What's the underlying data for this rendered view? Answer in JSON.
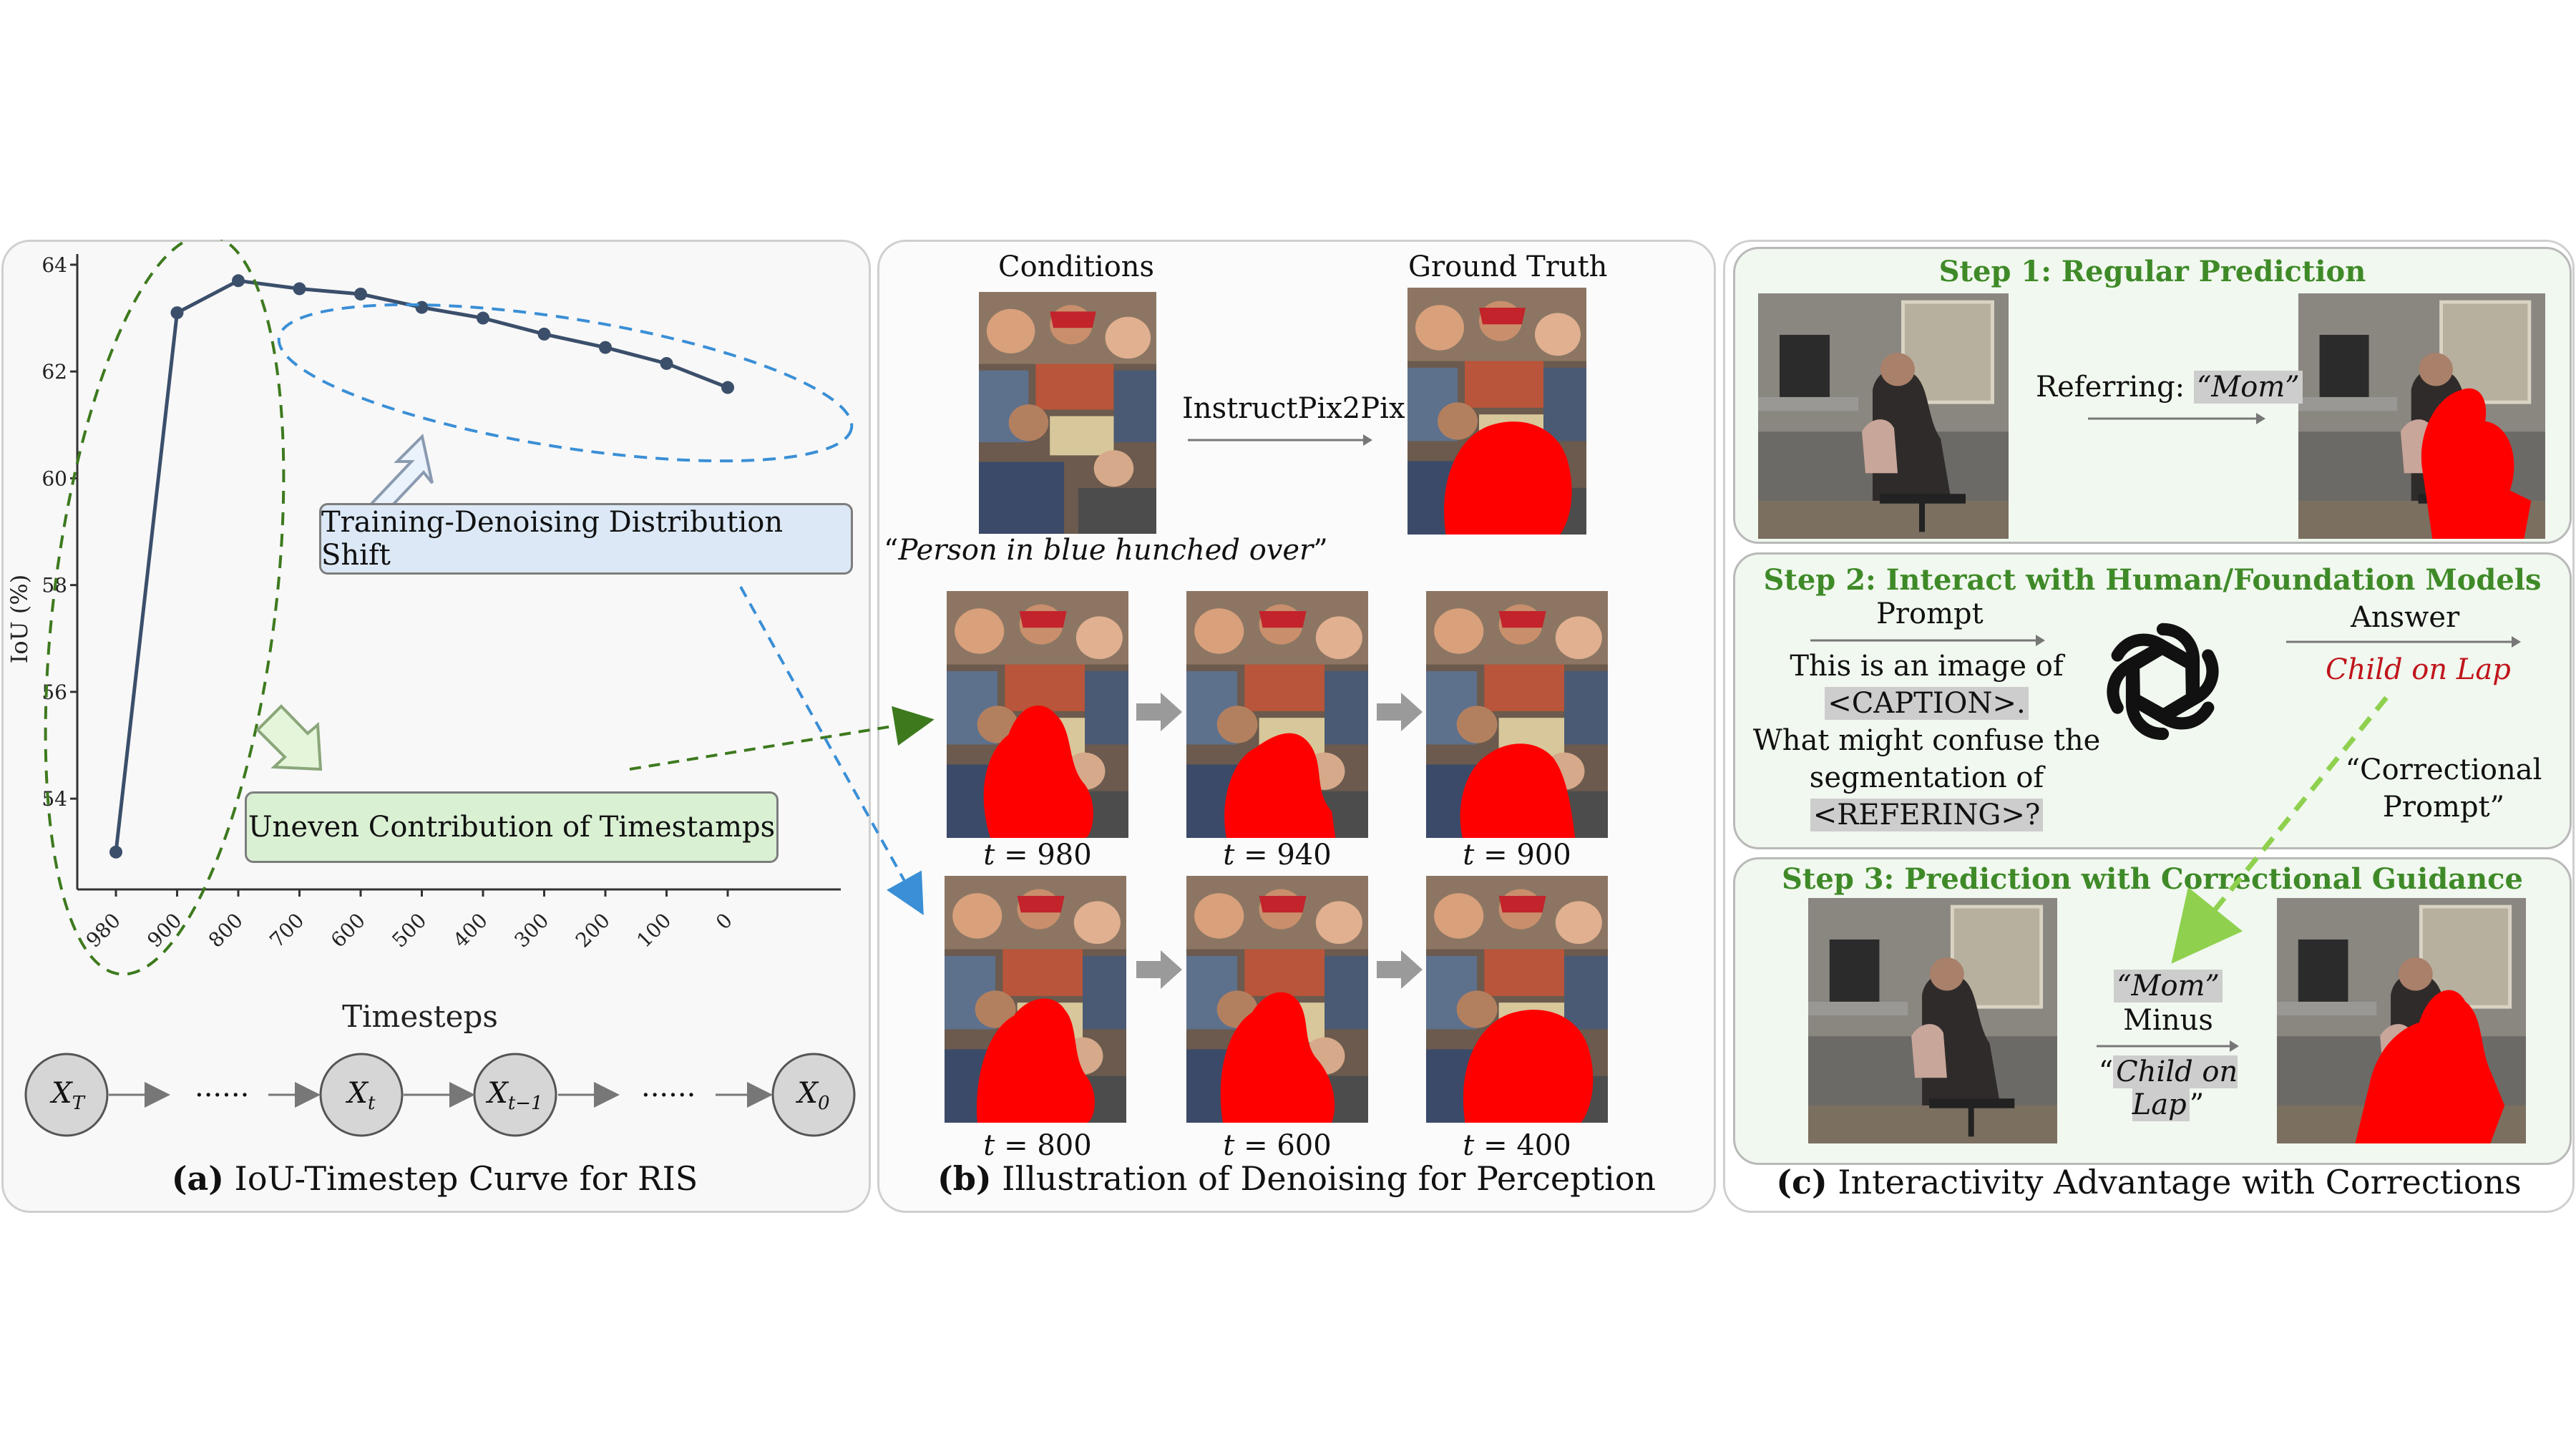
{
  "panel_a": {
    "caption_label": "(a)",
    "caption_text": " IoU-Timestep Curve for RIS",
    "callout_shift": "Training-Denoising Distribution Shift",
    "callout_uneven": "Uneven Contribution of Timestamps",
    "chain_dots_1": "......",
    "chain_dots_2": "......"
  },
  "chart_data": {
    "type": "line",
    "xlabel": "Timesteps",
    "ylabel": "IoU (%)",
    "categories": [
      "980",
      "900",
      "800",
      "700",
      "600",
      "500",
      "400",
      "300",
      "200",
      "100",
      "0"
    ],
    "values": [
      53.0,
      63.1,
      63.7,
      63.55,
      63.45,
      63.2,
      63.0,
      62.7,
      62.45,
      62.15,
      61.7
    ],
    "yticks": [
      "54",
      "56",
      "58",
      "60",
      "62",
      "64"
    ],
    "ylim": [
      52.3,
      64.2
    ],
    "color": "#3b4f6b"
  },
  "panel_b": {
    "caption_label": "(b)",
    "caption_text": " Illustration of Denoising for Perception",
    "conditions": "Conditions",
    "ground_truth": "Ground Truth",
    "method": "InstructPix2Pix",
    "query_open": "“",
    "query": "Person in blue hunched over",
    "query_close": "”",
    "timesteps": [
      "980",
      "940",
      "900",
      "800",
      "600",
      "400"
    ]
  },
  "panel_c": {
    "caption_label": "(c)",
    "caption_text": " Interactivity Advantage with Corrections",
    "step1_title": "Step 1: Regular Prediction",
    "referring_prefix": "Referring: ",
    "referring_value": "“Mom”",
    "step2_title": "Step 2: Interact with Human/Foundation Models",
    "prompt_label": "Prompt",
    "prompt_line1": "This is an image of",
    "prompt_caption": "<CAPTION>.",
    "prompt_line2": "What might confuse the",
    "prompt_line3": "segmentation of",
    "prompt_referring": "<REFERING>?",
    "answer_label": "Answer",
    "answer_value": "Child on Lap",
    "correctional_line1": "“Correctional",
    "correctional_line2": "Prompt”",
    "step3_title": "Step 3: Prediction with Correctional Guidance",
    "mom_value": "“Mom”",
    "minus": "Minus",
    "child_open": "“",
    "child_value": "Child on Lap",
    "child_close": "”"
  },
  "colors": {
    "mask_red": "#ff0000",
    "step_green": "#3f8a28",
    "callout_blue": "#dce8f6",
    "callout_green": "#d9f0d3"
  }
}
